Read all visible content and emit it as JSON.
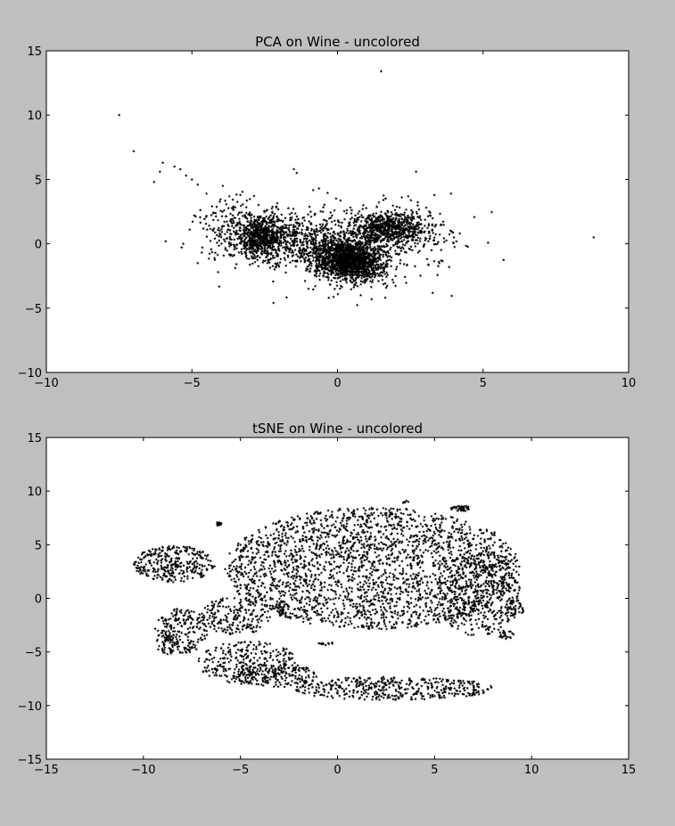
{
  "figure": {
    "background": "#bfbfbf",
    "axes_background": "#ffffff",
    "marker_color": "#000000"
  },
  "chart_data": [
    {
      "type": "scatter",
      "title": "PCA on Wine - uncolored",
      "xlabel": "",
      "ylabel": "",
      "xlim": [
        -10,
        10
      ],
      "ylim": [
        -10,
        15
      ],
      "xticks": [
        -10,
        -5,
        0,
        5,
        10
      ],
      "yticks": [
        -10,
        -5,
        0,
        5,
        10,
        15
      ],
      "xtick_labels": [
        "−10",
        "−5",
        "0",
        "5",
        "10"
      ],
      "ytick_labels": [
        "−10",
        "−5",
        "0",
        "5",
        "10",
        "15"
      ],
      "grid": false,
      "marker": "star",
      "approximate_point_count": 6497,
      "clusters": [
        {
          "label_x": "center",
          "cx": 0.4,
          "cy": -1.3,
          "sx": 0.6,
          "sy": 0.8,
          "n": 1600,
          "rot": 0.35
        },
        {
          "cx": 1.8,
          "cy": 1.2,
          "sx": 0.65,
          "sy": 0.7,
          "n": 700,
          "rot": 0.5
        },
        {
          "cx": -2.6,
          "cy": 0.5,
          "sx": 0.5,
          "sy": 0.8,
          "n": 650,
          "rot": 0.0
        },
        {
          "cx": -1.3,
          "cy": 0.2,
          "sx": 0.9,
          "sy": 0.9,
          "n": 350,
          "rot": 0.0
        },
        {
          "cx": 0.8,
          "cy": 0.5,
          "sx": 1.6,
          "sy": 1.5,
          "n": 400,
          "rot": 0.3
        },
        {
          "cx": -3.5,
          "cy": 1.2,
          "sx": 0.7,
          "sy": 1.2,
          "n": 200,
          "rot": 0.0
        }
      ],
      "outliers": [
        [
          -7.5,
          10.0
        ],
        [
          -7.0,
          7.2
        ],
        [
          -6.0,
          6.3
        ],
        [
          -5.6,
          6.0
        ],
        [
          -5.4,
          5.8
        ],
        [
          -5.2,
          5.3
        ],
        [
          -5.0,
          5.0
        ],
        [
          -6.3,
          4.8
        ],
        [
          -4.8,
          4.6
        ],
        [
          -5.9,
          0.2
        ],
        [
          -5.3,
          0.0
        ],
        [
          1.5,
          13.4
        ],
        [
          8.8,
          0.5
        ],
        [
          2.7,
          5.6
        ],
        [
          -1.5,
          5.8
        ],
        [
          -1.4,
          5.5
        ],
        [
          4.2,
          0.8
        ],
        [
          3.9,
          3.9
        ],
        [
          -2.2,
          -4.6
        ],
        [
          -4.1,
          -2.2
        ],
        [
          0.8,
          -4.0
        ],
        [
          -1.0,
          -3.5
        ],
        [
          -0.3,
          -4.2
        ],
        [
          -6.1,
          5.6
        ],
        [
          -4.5,
          3.9
        ],
        [
          -4.8,
          -1.5
        ],
        [
          3.5,
          -1.5
        ],
        [
          4.0,
          0.5
        ]
      ]
    },
    {
      "type": "scatter",
      "title": "tSNE on Wine - uncolored",
      "xlabel": "",
      "ylabel": "",
      "xlim": [
        -15,
        15
      ],
      "ylim": [
        -15,
        15
      ],
      "xticks": [
        -15,
        -10,
        -5,
        0,
        5,
        10,
        15
      ],
      "yticks": [
        -15,
        -10,
        -5,
        0,
        5,
        10,
        15
      ],
      "xtick_labels": [
        "−15",
        "−10",
        "−5",
        "0",
        "5",
        "10",
        "15"
      ],
      "ytick_labels": [
        "−15",
        "−10",
        "−5",
        "0",
        "5",
        "10",
        "15"
      ],
      "grid": false,
      "marker": "star",
      "approximate_point_count": 6497,
      "regions": [
        {
          "type": "ellipse",
          "cx": 1.8,
          "cy": 2.8,
          "rx": 7.6,
          "ry": 5.7,
          "n": 2400
        },
        {
          "type": "ellipse",
          "cx": 7.2,
          "cy": 0.5,
          "rx": 2.2,
          "ry": 4.0,
          "n": 420
        },
        {
          "type": "ellipse",
          "cx": 2.8,
          "cy": -8.4,
          "rx": 5.2,
          "ry": 1.1,
          "n": 420
        },
        {
          "type": "ellipse",
          "cx": -4.6,
          "cy": -6.0,
          "rx": 2.6,
          "ry": 2.0,
          "n": 300
        },
        {
          "type": "ellipse",
          "cx": -3.2,
          "cy": -7.2,
          "rx": 2.2,
          "ry": 1.1,
          "n": 160
        },
        {
          "type": "ellipse",
          "cx": -8.4,
          "cy": 3.2,
          "rx": 2.1,
          "ry": 1.7,
          "n": 320
        },
        {
          "type": "ellipse",
          "cx": -8.0,
          "cy": -3.0,
          "rx": 1.4,
          "ry": 2.1,
          "n": 200
        },
        {
          "type": "ellipse",
          "cx": -5.2,
          "cy": -1.6,
          "rx": 1.8,
          "ry": 1.8,
          "n": 200
        },
        {
          "type": "ellipse",
          "cx": -8.8,
          "cy": -4.4,
          "rx": 0.6,
          "ry": 0.9,
          "n": 40
        },
        {
          "type": "ellipse",
          "cx": 6.3,
          "cy": 8.4,
          "rx": 0.5,
          "ry": 0.3,
          "n": 40
        },
        {
          "type": "ellipse",
          "cx": 9.0,
          "cy": -1.0,
          "rx": 0.6,
          "ry": 0.8,
          "n": 50
        },
        {
          "type": "ellipse",
          "cx": 8.7,
          "cy": -3.4,
          "rx": 0.4,
          "ry": 0.4,
          "n": 25
        },
        {
          "type": "ellipse",
          "cx": -6.1,
          "cy": 7.0,
          "rx": 0.15,
          "ry": 0.25,
          "n": 12
        },
        {
          "type": "ellipse",
          "cx": -2.9,
          "cy": -1.0,
          "rx": 0.15,
          "ry": 0.7,
          "n": 20
        },
        {
          "type": "ellipse",
          "cx": -0.6,
          "cy": -4.2,
          "rx": 0.4,
          "ry": 0.2,
          "n": 12
        },
        {
          "type": "ellipse",
          "cx": 3.5,
          "cy": 9.0,
          "rx": 0.15,
          "ry": 0.15,
          "n": 6
        },
        {
          "type": "ellipse",
          "cx": 8.0,
          "cy": 6.0,
          "rx": 0.15,
          "ry": 0.2,
          "n": 6
        }
      ]
    }
  ]
}
